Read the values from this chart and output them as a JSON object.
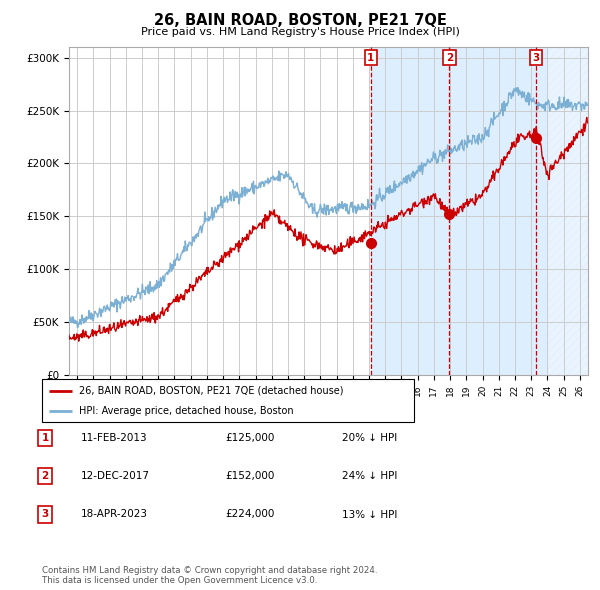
{
  "title": "26, BAIN ROAD, BOSTON, PE21 7QE",
  "subtitle": "Price paid vs. HM Land Registry's House Price Index (HPI)",
  "hpi_label": "HPI: Average price, detached house, Boston",
  "property_label": "26, BAIN ROAD, BOSTON, PE21 7QE (detached house)",
  "sale_events": [
    {
      "num": 1,
      "date": "11-FEB-2013",
      "date_x": 2013.11,
      "price": 125000,
      "pct": "20%",
      "direction": "↓"
    },
    {
      "num": 2,
      "date": "12-DEC-2017",
      "date_x": 2017.96,
      "price": 152000,
      "pct": "24%",
      "direction": "↓"
    },
    {
      "num": 3,
      "date": "18-APR-2023",
      "date_x": 2023.3,
      "price": 224000,
      "pct": "13%",
      "direction": "↓"
    }
  ],
  "ylim": [
    0,
    310000
  ],
  "xlim": [
    1994.5,
    2026.5
  ],
  "yticks": [
    0,
    50000,
    100000,
    150000,
    200000,
    250000,
    300000
  ],
  "ytick_labels": [
    "£0",
    "£50K",
    "£100K",
    "£150K",
    "£200K",
    "£250K",
    "£300K"
  ],
  "hpi_color": "#7bafd4",
  "property_color": "#cc0000",
  "background_color": "#ffffff",
  "plot_bg_color": "#ffffff",
  "shaded_region_color": "#ddeeff",
  "grid_color": "#cccccc",
  "footnote": "Contains HM Land Registry data © Crown copyright and database right 2024.\nThis data is licensed under the Open Government Licence v3.0."
}
